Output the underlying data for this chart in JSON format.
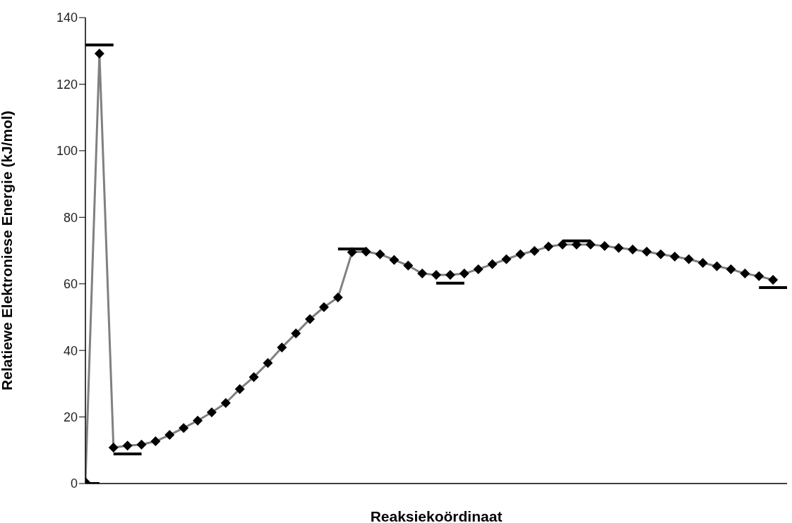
{
  "chart_data": {
    "type": "line",
    "xlabel": "Reaksiekoördinaat",
    "ylabel": "Relatiewe Elektroniese Energie (kJ/mol)",
    "categories": [
      null,
      null,
      null,
      null,
      null,
      null,
      null,
      null,
      null,
      null,
      null,
      null,
      null,
      null,
      null,
      null,
      null,
      null,
      null,
      null,
      null,
      null,
      null,
      null,
      null,
      null,
      null,
      null,
      null,
      null,
      null,
      null,
      null,
      null,
      null,
      null,
      null,
      null,
      null,
      null,
      null,
      null,
      null,
      null,
      null,
      null,
      null,
      null,
      null,
      null,
      null
    ],
    "ylim": [
      0,
      140
    ],
    "yticks": [
      0,
      20,
      40,
      60,
      80,
      100,
      120,
      140
    ],
    "grid": false,
    "marker": "diamond",
    "series": [
      {
        "color": "#808080",
        "values": [
          0.4,
          129.2,
          10.8,
          11.4,
          11.7,
          12.7,
          14.6,
          16.7,
          18.9,
          21.4,
          24.2,
          28.4,
          32,
          36.2,
          40.9,
          45.1,
          49.4,
          53,
          55.9,
          69.5,
          69.7,
          68.9,
          67.2,
          65.5,
          63.1,
          62.7,
          62.7,
          63.1,
          64.4,
          65.9,
          67.4,
          68.9,
          69.9,
          71.2,
          71.8,
          71.8,
          71.8,
          71.4,
          70.8,
          70.3,
          69.7,
          68.9,
          68.2,
          67.4,
          66.3,
          65.3,
          64.4,
          63.1,
          62.3,
          61.2,
          null
        ],
        "colors": [
          "#000000",
          "#000000",
          "#000000",
          "#000000",
          "#000000",
          "#000000",
          "#000000",
          "#000000",
          "#000000",
          "#000000",
          "#000000",
          "#000000",
          "#000000",
          "#000000",
          "#000000",
          "#000000",
          "#000000",
          "#000000",
          "#000000",
          "#000000",
          "#000000",
          "#000000",
          "#000000",
          "#000000",
          "#000000",
          "#000000",
          "#000000",
          "#000000",
          "#000000",
          "#000000",
          "#000000",
          "#000000",
          "#000000",
          "#000000",
          "#000000",
          "#000000",
          "#000000",
          "#000000",
          "#000000",
          "#000000",
          "#000000",
          "#000000",
          "#000000",
          "#000000",
          "#000000",
          "#000000",
          "#000000",
          "#000000",
          "#000000",
          "#000000",
          "#000000"
        ]
      },
      {
        "color": "#000000",
        "marker": "none",
        "values": [
          0,
          0,
          null,
          null,
          null,
          null,
          null,
          null,
          null,
          null,
          null,
          null,
          null,
          null,
          null,
          null,
          null,
          null,
          null,
          null,
          null,
          null,
          null,
          null,
          null,
          null,
          null,
          null,
          null,
          null,
          null,
          null,
          null,
          null,
          null,
          null,
          null,
          null,
          null,
          null,
          null,
          null,
          null,
          null,
          null,
          null,
          null,
          null,
          null,
          null,
          null
        ]
      },
      {
        "color": "#000000",
        "marker": "none",
        "values": [
          131.8,
          131.8,
          131.8,
          null,
          null,
          null,
          null,
          null,
          null,
          null,
          null,
          null,
          null,
          null,
          null,
          null,
          null,
          null,
          null,
          null,
          null,
          null,
          null,
          null,
          null,
          null,
          null,
          null,
          null,
          null,
          null,
          null,
          null,
          null,
          null,
          null,
          null,
          null,
          null,
          null,
          null,
          null,
          null,
          null,
          null,
          null,
          null,
          null,
          null,
          null,
          null
        ]
      },
      {
        "color": "#000000",
        "marker": "none",
        "values": [
          null,
          null,
          8.9,
          8.9,
          8.9,
          null,
          null,
          null,
          null,
          null,
          null,
          null,
          null,
          null,
          null,
          null,
          null,
          null,
          null,
          null,
          null,
          null,
          null,
          null,
          null,
          null,
          null,
          null,
          null,
          null,
          null,
          null,
          null,
          null,
          null,
          null,
          null,
          null,
          null,
          null,
          null,
          null,
          null,
          null,
          null,
          null,
          null,
          null,
          null,
          null,
          null
        ]
      },
      {
        "color": "#000000",
        "marker": "none",
        "values": [
          null,
          null,
          null,
          null,
          null,
          null,
          null,
          null,
          null,
          null,
          null,
          null,
          null,
          null,
          null,
          null,
          null,
          null,
          70.5,
          70.5,
          70.5,
          null,
          null,
          null,
          null,
          null,
          null,
          null,
          null,
          null,
          null,
          null,
          null,
          null,
          null,
          null,
          null,
          null,
          null,
          null,
          null,
          null,
          null,
          null,
          null,
          null,
          null,
          null,
          null,
          null,
          null
        ]
      },
      {
        "color": "#000000",
        "marker": "none",
        "values": [
          null,
          null,
          null,
          null,
          null,
          null,
          null,
          null,
          null,
          null,
          null,
          null,
          null,
          null,
          null,
          null,
          null,
          null,
          null,
          null,
          null,
          null,
          null,
          null,
          null,
          60.2,
          60.2,
          60.2,
          null,
          null,
          null,
          null,
          null,
          null,
          null,
          null,
          null,
          null,
          null,
          null,
          null,
          null,
          null,
          null,
          null,
          null,
          null,
          null,
          null,
          null,
          null
        ]
      },
      {
        "color": "#000000",
        "marker": "none",
        "values": [
          null,
          null,
          null,
          null,
          null,
          null,
          null,
          null,
          null,
          null,
          null,
          null,
          null,
          null,
          null,
          null,
          null,
          null,
          null,
          null,
          null,
          null,
          null,
          null,
          null,
          null,
          null,
          null,
          null,
          null,
          null,
          null,
          null,
          null,
          72.9,
          72.9,
          72.9,
          null,
          null,
          null,
          null,
          null,
          null,
          null,
          null,
          null,
          null,
          null,
          null,
          null,
          null
        ]
      },
      {
        "color": "#000000",
        "marker": "none",
        "values": [
          null,
          null,
          null,
          null,
          null,
          null,
          null,
          null,
          null,
          null,
          null,
          null,
          null,
          null,
          null,
          null,
          null,
          null,
          null,
          null,
          null,
          null,
          null,
          null,
          null,
          null,
          null,
          null,
          null,
          null,
          null,
          null,
          null,
          null,
          null,
          null,
          null,
          null,
          null,
          null,
          null,
          null,
          null,
          null,
          null,
          null,
          null,
          null,
          58.9,
          58.9,
          58.9
        ]
      }
    ]
  }
}
